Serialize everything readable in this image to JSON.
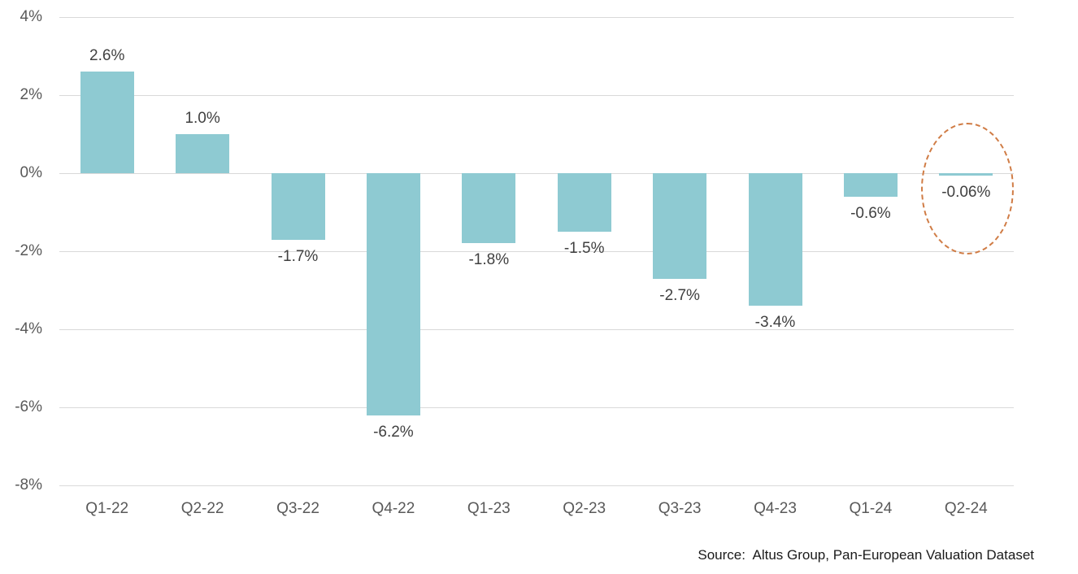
{
  "chart_data": {
    "type": "bar",
    "title": "",
    "xlabel": "",
    "ylabel": "",
    "categories": [
      "Q1-22",
      "Q2-22",
      "Q3-22",
      "Q4-22",
      "Q1-23",
      "Q2-23",
      "Q3-23",
      "Q4-23",
      "Q1-24",
      "Q2-24"
    ],
    "values": [
      2.6,
      1.0,
      -1.7,
      -6.2,
      -1.8,
      -1.5,
      -2.7,
      -3.4,
      -0.6,
      -0.06
    ],
    "data_labels": [
      "2.6%",
      "1.0%",
      "-1.7%",
      "-6.2%",
      "-1.8%",
      "-1.5%",
      "-2.7%",
      "-3.4%",
      "-0.6%",
      "-0.06%"
    ],
    "ylim": [
      -8,
      4
    ],
    "yticks": [
      4,
      2,
      0,
      -2,
      -4,
      -6,
      -8
    ],
    "ytick_labels": [
      "4%",
      "2%",
      "0%",
      "-2%",
      "-4%",
      "-6%",
      "-8%"
    ],
    "grid": "horizontal",
    "legend": "none",
    "bar_color": "#8ecad2",
    "highlight": {
      "category": "Q2-24",
      "value_label": "-0.06%",
      "shape": "dashed-ellipse",
      "color": "#d07c45"
    }
  },
  "source_note": "Source:  Altus Group, Pan-European Valuation Dataset",
  "colors": {
    "background": "#ffffff",
    "bar": "#8ecad2",
    "gridline": "#d9d9d9",
    "axis_label": "#595959",
    "data_label": "#404040",
    "highlight": "#d07c45",
    "source_text": "#1a1a1a"
  }
}
